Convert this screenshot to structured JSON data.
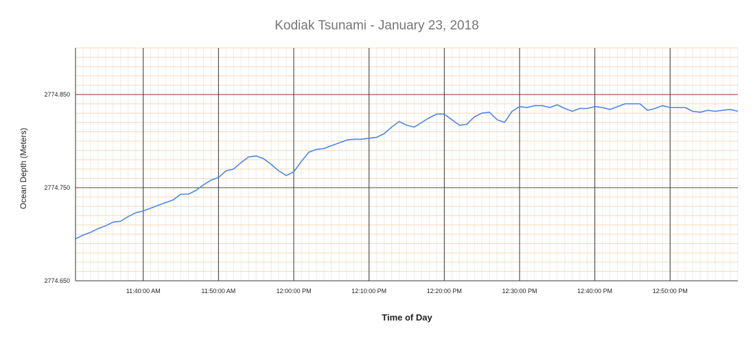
{
  "chart_data": {
    "type": "line",
    "title": "Kodiak Tsunami - January 23, 2018",
    "xlabel": "Time of Day",
    "ylabel": "Ocean Depth (Meters)",
    "x_range": [
      "11:31:00 AM",
      "12:59:00 PM"
    ],
    "ylim": [
      2774.65,
      2774.9
    ],
    "x_tick_labels": [
      "11:40:00 AM",
      "11:50:00 AM",
      "12:00:00 PM",
      "12:10:00 PM",
      "12:20:00 PM",
      "12:30:00 PM",
      "12:40:00 PM",
      "12:50:00 PM"
    ],
    "y_tick_labels": [
      "2774.650",
      "2774.750",
      "2774.850"
    ],
    "grid": true,
    "series": [
      {
        "color": "#4a86e8",
        "x": [
          "11:31:00 AM",
          "11:32:00 AM",
          "11:33:00 AM",
          "11:34:00 AM",
          "11:35:00 AM",
          "11:36:00 AM",
          "11:37:00 AM",
          "11:38:00 AM",
          "11:39:00 AM",
          "11:40:00 AM",
          "11:41:00 AM",
          "11:42:00 AM",
          "11:43:00 AM",
          "11:44:00 AM",
          "11:45:00 AM",
          "11:46:00 AM",
          "11:47:00 AM",
          "11:48:00 AM",
          "11:49:00 AM",
          "11:50:00 AM",
          "11:51:00 AM",
          "11:52:00 AM",
          "11:53:00 AM",
          "11:54:00 AM",
          "11:55:00 AM",
          "11:56:00 AM",
          "11:57:00 AM",
          "11:58:00 AM",
          "11:59:00 AM",
          "12:00:00 PM",
          "12:01:00 PM",
          "12:02:00 PM",
          "12:03:00 PM",
          "12:04:00 PM",
          "12:05:00 PM",
          "12:06:00 PM",
          "12:07:00 PM",
          "12:08:00 PM",
          "12:09:00 PM",
          "12:10:00 PM",
          "12:11:00 PM",
          "12:12:00 PM",
          "12:13:00 PM",
          "12:14:00 PM",
          "12:15:00 PM",
          "12:16:00 PM",
          "12:17:00 PM",
          "12:18:00 PM",
          "12:19:00 PM",
          "12:20:00 PM",
          "12:21:00 PM",
          "12:22:00 PM",
          "12:23:00 PM",
          "12:24:00 PM",
          "12:25:00 PM",
          "12:26:00 PM",
          "12:27:00 PM",
          "12:28:00 PM",
          "12:29:00 PM",
          "12:30:00 PM",
          "12:31:00 PM",
          "12:32:00 PM",
          "12:33:00 PM",
          "12:34:00 PM",
          "12:35:00 PM",
          "12:36:00 PM",
          "12:37:00 PM",
          "12:38:00 PM",
          "12:39:00 PM",
          "12:40:00 PM",
          "12:41:00 PM",
          "12:42:00 PM",
          "12:43:00 PM",
          "12:44:00 PM",
          "12:45:00 PM",
          "12:46:00 PM",
          "12:47:00 PM",
          "12:48:00 PM",
          "12:49:00 PM",
          "12:50:00 PM",
          "12:51:00 PM",
          "12:52:00 PM",
          "12:53:00 PM",
          "12:54:00 PM",
          "12:55:00 PM",
          "12:56:00 PM",
          "12:57:00 PM",
          "12:58:00 PM",
          "12:59:00 PM"
        ],
        "values": [
          2774.695,
          2774.699,
          2774.702,
          2774.706,
          2774.709,
          2774.713,
          2774.714,
          2774.719,
          2774.723,
          2774.725,
          2774.728,
          2774.731,
          2774.734,
          2774.737,
          2774.743,
          2774.743,
          2774.747,
          2774.753,
          2774.758,
          2774.761,
          2774.768,
          2774.77,
          2774.777,
          2774.783,
          2774.784,
          2774.781,
          2774.775,
          2774.768,
          2774.763,
          2774.767,
          2774.778,
          2774.788,
          2774.791,
          2774.792,
          2774.795,
          2774.798,
          2774.801,
          2774.802,
          2774.802,
          2774.803,
          2774.804,
          2774.808,
          2774.815,
          2774.821,
          2774.817,
          2774.815,
          2774.82,
          2774.825,
          2774.829,
          2774.829,
          2774.823,
          2774.817,
          2774.818,
          2774.826,
          2774.83,
          2774.831,
          2774.823,
          2774.82,
          2774.832,
          2774.837,
          2774.836,
          2774.838,
          2774.838,
          2774.836,
          2774.839,
          2774.835,
          2774.832,
          2774.835,
          2774.835,
          2774.837,
          2774.836,
          2774.834,
          2774.837,
          2774.84,
          2774.84,
          2774.84,
          2774.833,
          2774.835,
          2774.838,
          2774.836,
          2774.836,
          2774.836,
          2774.832,
          2774.831,
          2774.833,
          2774.832,
          2774.833,
          2774.834,
          2774.832
        ]
      }
    ]
  }
}
